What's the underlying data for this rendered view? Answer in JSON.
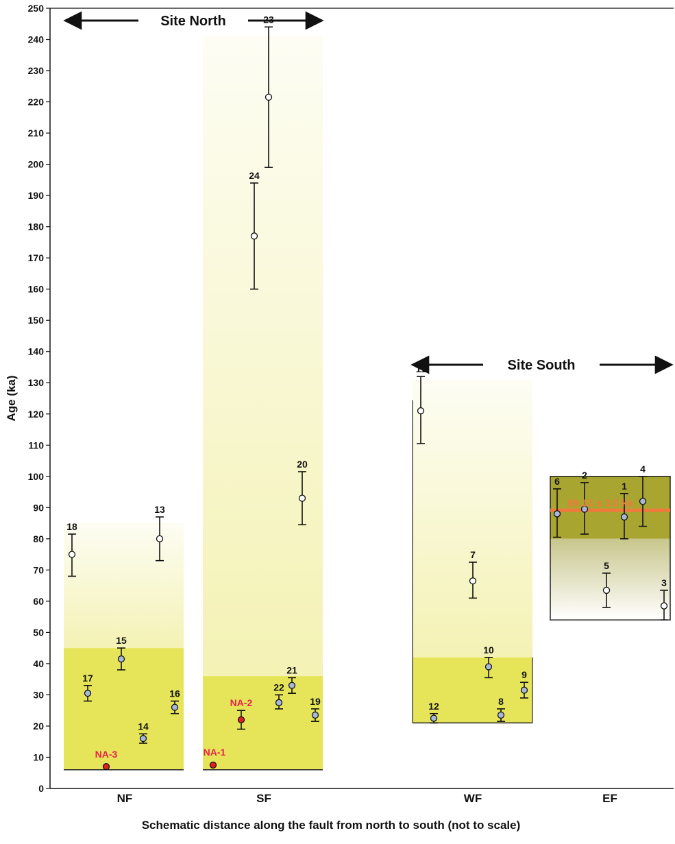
{
  "chart_data": {
    "type": "scatter",
    "title": "",
    "xlabel": "Schematic distance along the fault from north to south (not to scale)",
    "ylabel": "Age (ka)",
    "ylim": [
      0,
      250
    ],
    "y_ticks": [
      0,
      10,
      20,
      30,
      40,
      50,
      60,
      70,
      80,
      90,
      100,
      110,
      120,
      130,
      140,
      150,
      160,
      170,
      180,
      190,
      200,
      210,
      220,
      230,
      240,
      250
    ],
    "grid": false,
    "categories": [
      "NF",
      "SF",
      "WF",
      "EF"
    ],
    "sites": [
      {
        "label": "Site North"
      },
      {
        "label": "Site South"
      }
    ],
    "groups": [
      {
        "category": "NF",
        "box_range": [
          6,
          85
        ],
        "threshold": 45
      },
      {
        "category": "SF",
        "box_range": [
          6,
          241
        ],
        "threshold": 36
      },
      {
        "category": "WF",
        "box_range": [
          21,
          131
        ],
        "threshold": 42
      },
      {
        "category": "EF",
        "box_range": [
          54,
          100
        ],
        "threshold": 80
      }
    ],
    "annotation": {
      "text": "89.13 ± 3.5 ka",
      "value": 89.13,
      "color": "#f07a3c"
    },
    "colors": {
      "open": "#ffffff",
      "blue": "#a8b8d8",
      "red": "#e02020",
      "na_label": "#e8234a",
      "yellow": "#e6e55a",
      "olive": "#a8a530"
    },
    "points": [
      {
        "id": "18",
        "category": "NF",
        "y": 75,
        "err": [
          68,
          81.5
        ],
        "style": "open"
      },
      {
        "id": "17",
        "category": "NF",
        "y": 30.5,
        "err": [
          28,
          33
        ],
        "style": "blue"
      },
      {
        "id": "NA-3",
        "category": "NF",
        "y": 7,
        "err": null,
        "style": "red"
      },
      {
        "id": "15",
        "category": "NF",
        "y": 41.5,
        "err": [
          38,
          45
        ],
        "style": "blue"
      },
      {
        "id": "14",
        "category": "NF",
        "y": 16,
        "err": [
          14.5,
          17.5
        ],
        "style": "blue"
      },
      {
        "id": "13",
        "category": "NF",
        "y": 80,
        "err": [
          73,
          87
        ],
        "style": "open"
      },
      {
        "id": "16",
        "category": "NF",
        "y": 26,
        "err": [
          24,
          28
        ],
        "style": "blue"
      },
      {
        "id": "NA-1",
        "category": "SF",
        "y": 7.5,
        "err": null,
        "style": "red"
      },
      {
        "id": "NA-2",
        "category": "SF",
        "y": 22,
        "err": [
          19,
          25
        ],
        "style": "red"
      },
      {
        "id": "24",
        "category": "SF",
        "y": 177,
        "err": [
          160,
          194
        ],
        "style": "open"
      },
      {
        "id": "23",
        "category": "SF",
        "y": 221.5,
        "err": [
          199,
          244
        ],
        "style": "open"
      },
      {
        "id": "22",
        "category": "SF",
        "y": 27.5,
        "err": [
          25.5,
          30
        ],
        "style": "blue"
      },
      {
        "id": "21",
        "category": "SF",
        "y": 33,
        "err": [
          30.5,
          35.5
        ],
        "style": "blue"
      },
      {
        "id": "20",
        "category": "SF",
        "y": 93,
        "err": [
          84.5,
          101.5
        ],
        "style": "open"
      },
      {
        "id": "19",
        "category": "SF",
        "y": 23.5,
        "err": [
          21.5,
          25.5
        ],
        "style": "blue"
      },
      {
        "id": "11",
        "category": "WF",
        "y": 121,
        "err": [
          110.5,
          132
        ],
        "style": "open"
      },
      {
        "id": "12",
        "category": "WF",
        "y": 22.5,
        "err": [
          21,
          24
        ],
        "style": "blue"
      },
      {
        "id": "7",
        "category": "WF",
        "y": 66.5,
        "err": [
          61,
          72.5
        ],
        "style": "open"
      },
      {
        "id": "10",
        "category": "WF",
        "y": 39,
        "err": [
          35.5,
          42
        ],
        "style": "blue"
      },
      {
        "id": "8",
        "category": "WF",
        "y": 23.5,
        "err": [
          21.5,
          25.5
        ],
        "style": "blue"
      },
      {
        "id": "9",
        "category": "WF",
        "y": 31.5,
        "err": [
          29,
          34
        ],
        "style": "blue"
      },
      {
        "id": "6",
        "category": "EF",
        "y": 88,
        "err": [
          80.5,
          96
        ],
        "style": "blue"
      },
      {
        "id": "2",
        "category": "EF",
        "y": 89.5,
        "err": [
          81.5,
          98
        ],
        "style": "blue"
      },
      {
        "id": "1",
        "category": "EF",
        "y": 87,
        "err": [
          80,
          94.5
        ],
        "style": "blue"
      },
      {
        "id": "4",
        "category": "EF",
        "y": 92,
        "err": [
          84,
          100
        ],
        "style": "blue"
      },
      {
        "id": "5",
        "category": "EF",
        "y": 63.5,
        "err": [
          58,
          69
        ],
        "style": "open"
      },
      {
        "id": "3",
        "category": "EF",
        "y": 58.5,
        "err": [
          54,
          63.5
        ],
        "style": "open"
      }
    ]
  }
}
